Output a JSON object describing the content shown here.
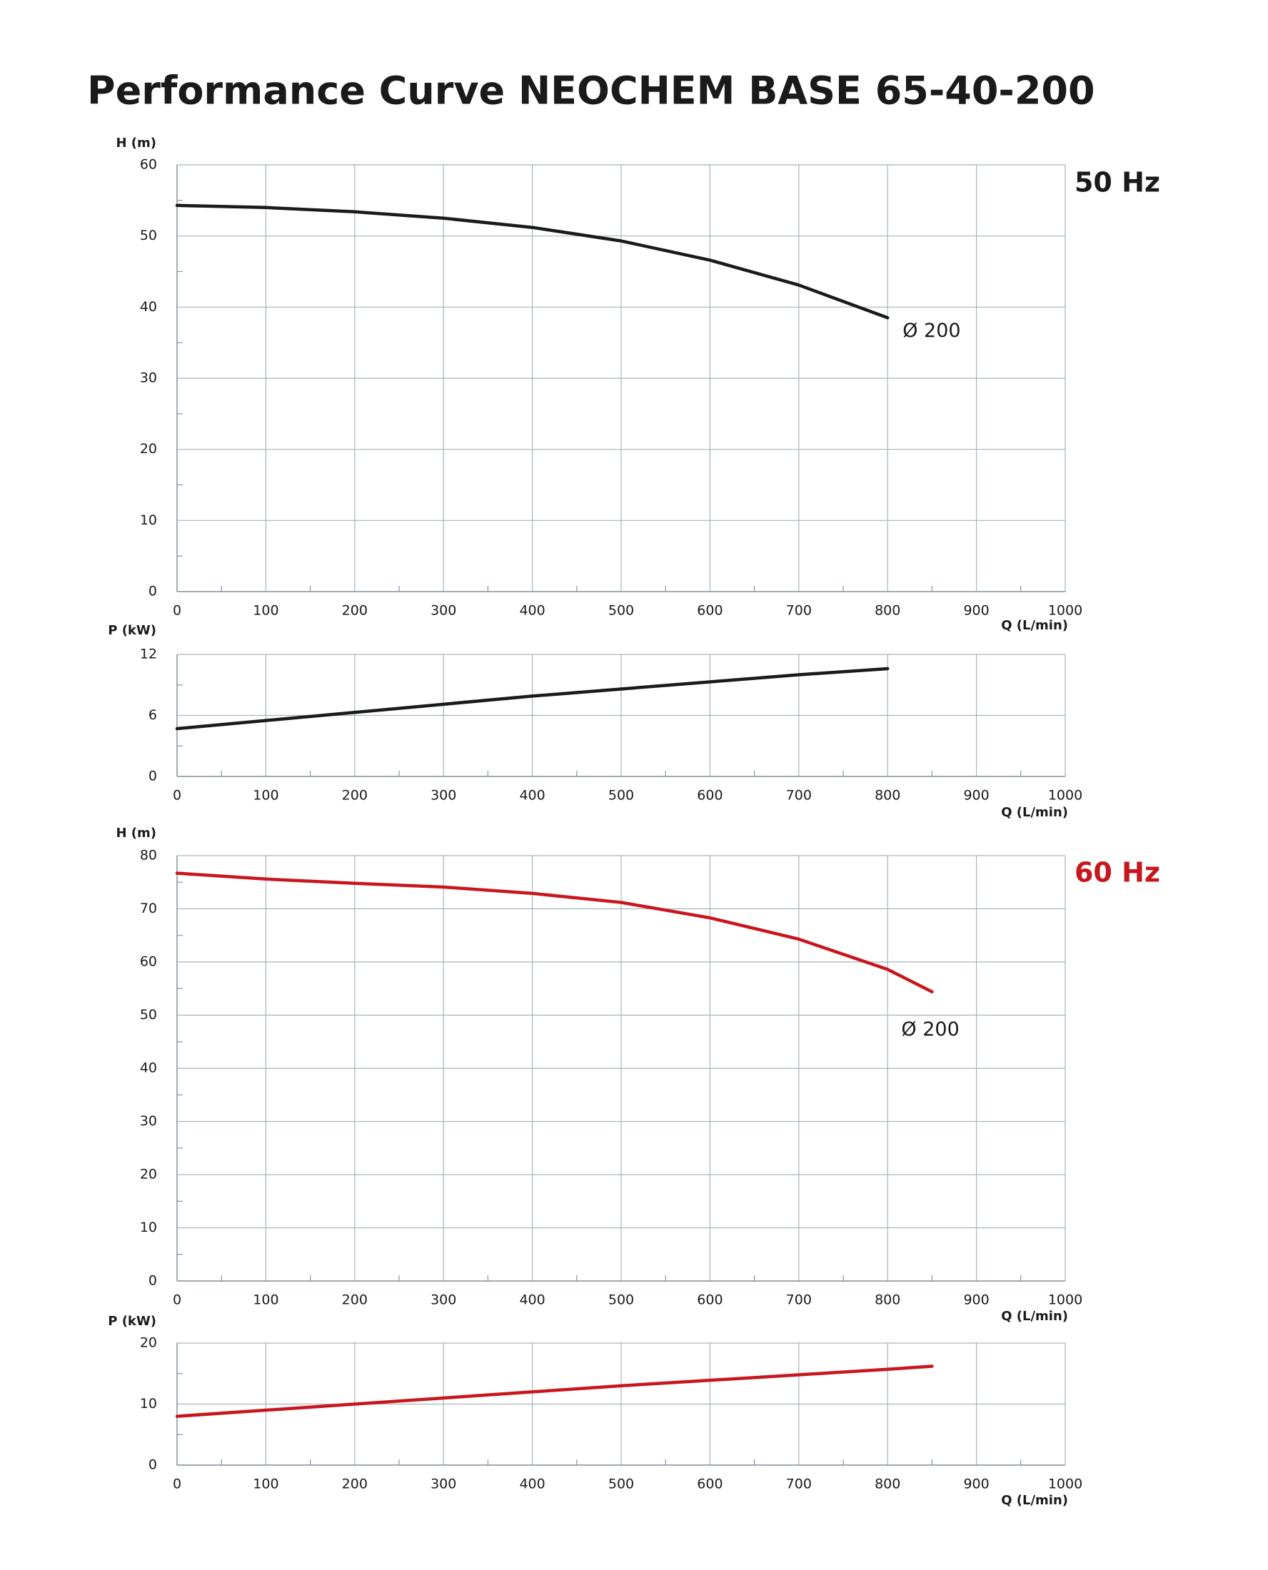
{
  "title": "Performance Curve  NEOCHEM BASE 65-40-200",
  "chart_data": [
    {
      "type": "line",
      "label": "50 Hz",
      "label_color": "#1a1a1a",
      "y_label": "H (m)",
      "x_label": "Q (L/min)",
      "x": [
        0,
        100,
        200,
        300,
        400,
        500,
        600,
        700,
        800
      ],
      "series": [
        {
          "name": "Ø 200",
          "color": "#1a1a1a",
          "values": [
            54.3,
            54.0,
            53.4,
            52.5,
            51.2,
            49.3,
            46.6,
            43.1,
            38.5
          ]
        }
      ],
      "xlim": [
        0,
        1000
      ],
      "xticks": [
        0,
        100,
        200,
        300,
        400,
        500,
        600,
        700,
        800,
        900,
        1000
      ],
      "ylim": [
        0,
        60
      ],
      "yticks": [
        0,
        10,
        20,
        30,
        40,
        50,
        60
      ],
      "grid": true
    },
    {
      "type": "line",
      "y_label": "P (kW)",
      "x_label": "Q (L/min)",
      "x": [
        0,
        100,
        200,
        300,
        400,
        500,
        600,
        700,
        800
      ],
      "series": [
        {
          "color": "#1a1a1a",
          "values": [
            4.7,
            5.5,
            6.3,
            7.1,
            7.9,
            8.6,
            9.3,
            10.0,
            10.6
          ]
        }
      ],
      "xlim": [
        0,
        1000
      ],
      "xticks": [
        0,
        100,
        200,
        300,
        400,
        500,
        600,
        700,
        800,
        900,
        1000
      ],
      "ylim": [
        0,
        12
      ],
      "yticks": [
        0,
        6,
        12
      ],
      "grid": true
    },
    {
      "type": "line",
      "label": "60 Hz",
      "label_color": "#c8161d",
      "y_label": "H (m)",
      "x_label": "Q (L/min)",
      "x": [
        0,
        100,
        200,
        300,
        400,
        500,
        600,
        700,
        800,
        850
      ],
      "series": [
        {
          "name": "Ø 200",
          "color": "#c8161d",
          "values": [
            76.7,
            75.6,
            74.8,
            74.1,
            72.9,
            71.2,
            68.3,
            64.3,
            58.6,
            54.4
          ]
        }
      ],
      "xlim": [
        0,
        1000
      ],
      "xticks": [
        0,
        100,
        200,
        300,
        400,
        500,
        600,
        700,
        800,
        900,
        1000
      ],
      "ylim": [
        0,
        80
      ],
      "yticks": [
        0,
        10,
        20,
        30,
        40,
        50,
        60,
        70,
        80
      ],
      "grid": true
    },
    {
      "type": "line",
      "y_label": "P (kW)",
      "x_label": "Q (L/min)",
      "x": [
        0,
        100,
        200,
        300,
        400,
        500,
        600,
        700,
        800,
        850
      ],
      "series": [
        {
          "color": "#c8161d",
          "values": [
            8.0,
            9.0,
            10.0,
            11.0,
            12.0,
            13.0,
            13.9,
            14.8,
            15.7,
            16.2
          ]
        }
      ],
      "xlim": [
        0,
        1000
      ],
      "xticks": [
        0,
        100,
        200,
        300,
        400,
        500,
        600,
        700,
        800,
        900,
        1000
      ],
      "ylim": [
        0,
        20
      ],
      "yticks": [
        0,
        10,
        20
      ],
      "grid": true
    }
  ]
}
